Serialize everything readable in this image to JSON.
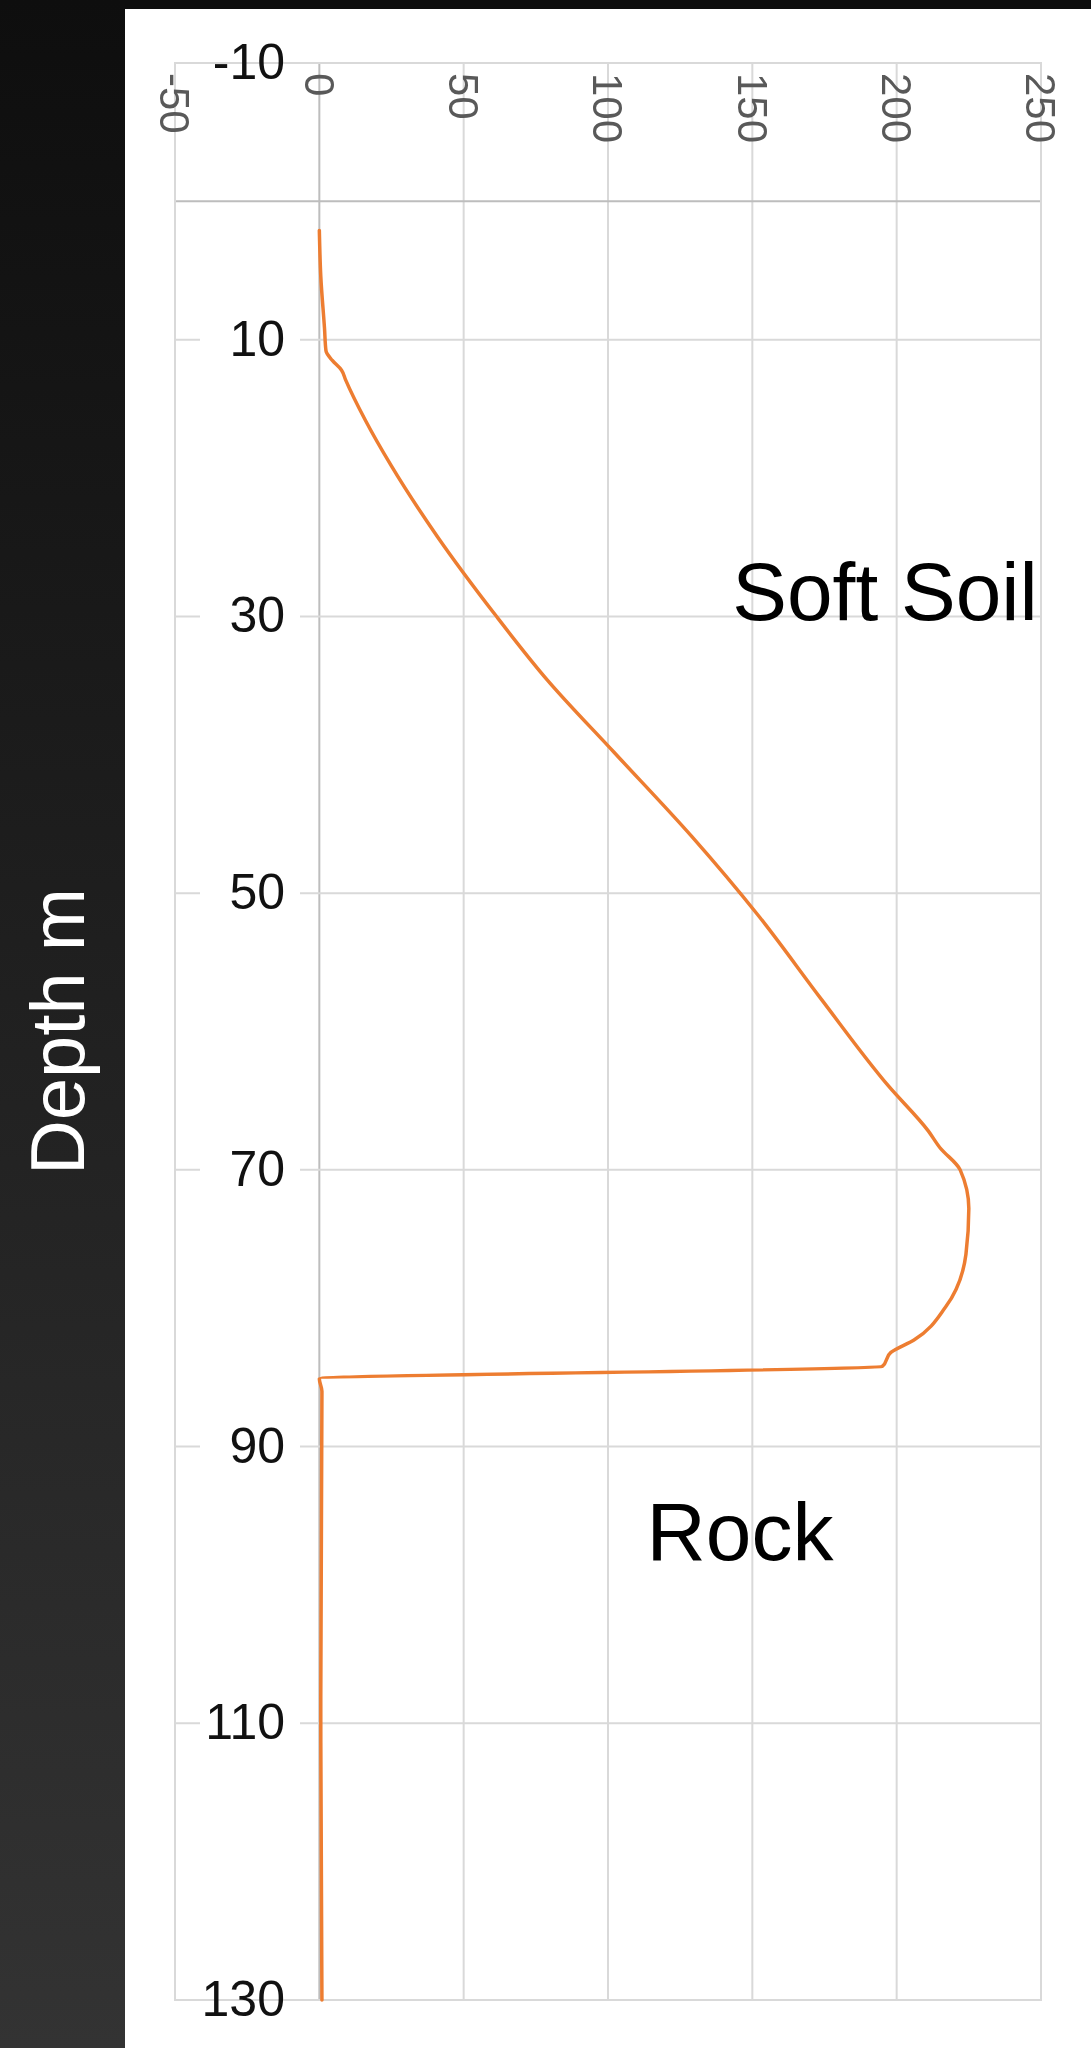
{
  "chart_data": {
    "type": "line",
    "ylabel": "Depth m",
    "ylim": [
      130,
      -10
    ],
    "yticks": [
      {
        "value": -10,
        "label": "-10"
      },
      10,
      30,
      50,
      70,
      90,
      110,
      {
        "value": 130,
        "label": "130"
      }
    ],
    "xlim": [
      -50,
      250
    ],
    "xticks": [
      -50,
      0,
      50,
      100,
      150,
      200,
      250
    ],
    "grid": true,
    "marker": "none",
    "line_style": "solid",
    "annotations": [
      "Soft Soil",
      "Rock"
    ],
    "series": [
      {
        "color": "#ed7d31",
        "x": [
          0,
          0.5,
          1.8,
          2.3,
          4.5,
          7.7,
          9.1,
          15.9,
          24.9,
          40.8,
          61,
          79,
          102,
          129,
          152,
          174,
          197,
          211,
          215,
          222,
          225,
          224,
          217,
          206,
          198,
          195,
          0,
          0.9,
          0.5,
          0.9
        ],
        "values": [
          2.1,
          5.4,
          9.2,
          10.8,
          11.5,
          12.2,
          12.9,
          15.8,
          19.1,
          24.2,
          29.9,
          34.6,
          39.8,
          45.9,
          51.6,
          57.7,
          63.9,
          67.2,
          68.4,
          70,
          72.8,
          76.1,
          79.9,
          82.3,
          83.2,
          84.2,
          85.1,
          86,
          108.2,
          130
        ]
      }
    ]
  }
}
